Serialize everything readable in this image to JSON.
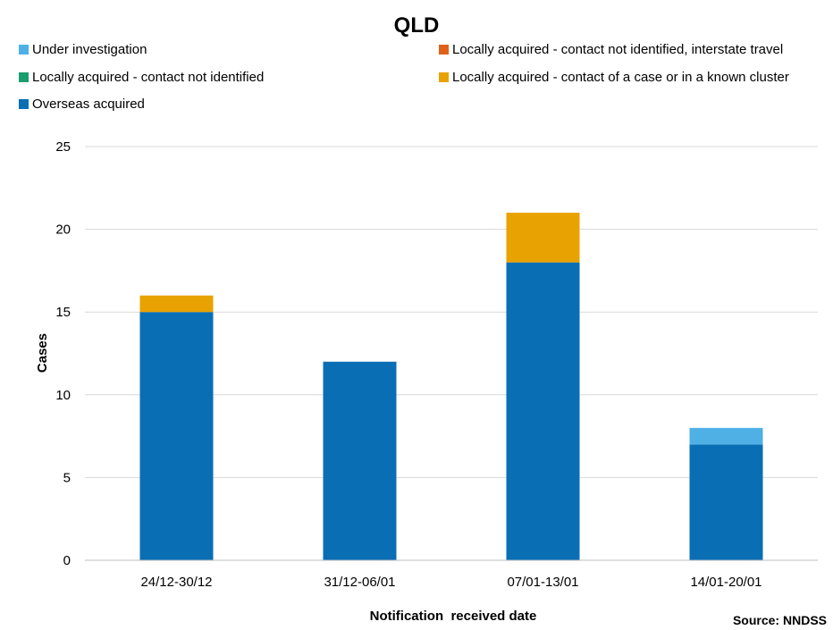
{
  "chart_data": {
    "type": "bar",
    "stacked": true,
    "title": "QLD",
    "xlabel": "Notification  received date",
    "ylabel": "Cases",
    "ylim": [
      0,
      25
    ],
    "yticks": [
      "0",
      "5",
      "10",
      "15",
      "20",
      "25"
    ],
    "categories": [
      "24/12-30/12",
      "31/12-06/01",
      "07/01-13/01",
      "14/01-20/01"
    ],
    "series": [
      {
        "name": "Overseas acquired",
        "color": "#0a6eb4",
        "values": [
          15,
          12,
          18,
          7
        ]
      },
      {
        "name": "Locally acquired - contact of a case or in a known cluster",
        "color": "#e8a202",
        "values": [
          1,
          0,
          3,
          0
        ]
      },
      {
        "name": "Locally acquired - contact not identified",
        "color": "#1a9e6e",
        "values": [
          0,
          0,
          0,
          0
        ]
      },
      {
        "name": "Locally acquired - contact not identified, interstate travel",
        "color": "#e0611a",
        "values": [
          0,
          0,
          0,
          0
        ]
      },
      {
        "name": "Under investigation",
        "color": "#4fb0e6",
        "values": [
          0,
          0,
          0,
          1
        ]
      }
    ],
    "legend": {
      "placement": "top",
      "order": [
        "Under investigation",
        "Locally acquired - contact not identified, interstate travel",
        "Locally acquired - contact not identified",
        "Locally acquired - contact of a case or in a known cluster",
        "Overseas acquired"
      ]
    },
    "grid": true,
    "source": "Source: NNDSS"
  }
}
